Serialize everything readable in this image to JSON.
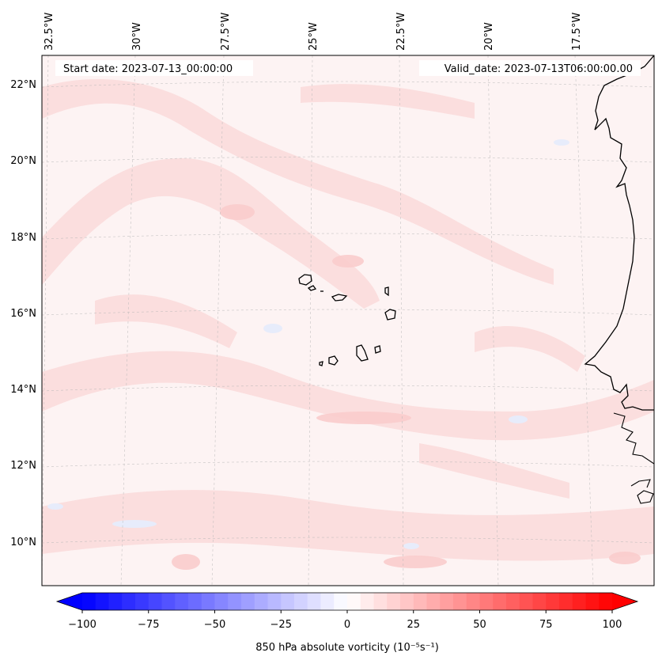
{
  "map": {
    "start_date_label": "Start date: 2023-07-13_00:00:00",
    "valid_date_label": "Valid_date: 2023-07-13T06:00:00.00",
    "lon_labels": [
      "32.5°W",
      "30°W",
      "27.5°W",
      "25°W",
      "22.5°W",
      "20°W",
      "17.5°W"
    ],
    "lat_labels": [
      "22°N",
      "20°N",
      "18°N",
      "16°N",
      "14°N",
      "12°N",
      "10°N"
    ],
    "extent": {
      "lon_min": -33.0,
      "lon_max": -16.5,
      "lat_min": 8.9,
      "lat_max": 22.8
    },
    "field_colors": {
      "background": "#fdf3f3",
      "pink_band": "#fbdcdc",
      "blue_patch": "#e7ecfb"
    },
    "coastline_color": "#000000"
  },
  "colorbar": {
    "label": "850 hPa absolute vorticity (10⁻⁵s⁻¹)",
    "ticks": [
      "−100",
      "−75",
      "−50",
      "−25",
      "0",
      "25",
      "50",
      "75",
      "100"
    ],
    "vmin": -100,
    "vmax": 100,
    "levels": 40,
    "cmap": "bwr",
    "color_low": "#0000ff",
    "color_mid": "#ffffff",
    "color_high": "#ff0000"
  }
}
